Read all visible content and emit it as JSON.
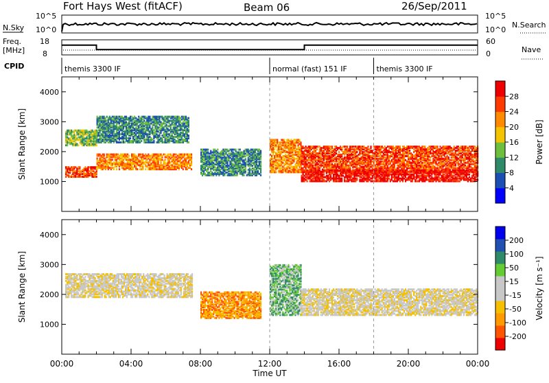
{
  "header": {
    "station": "Fort Hays West (fitACF)",
    "beam": "Beam 06",
    "date": "26/Sep/2011"
  },
  "top_panels": {
    "nsky_label": "N.Sky",
    "nsearch_label": "N.Search",
    "noise_ticks": [
      "10^5",
      "10^0"
    ],
    "freq_label": "Freq.",
    "freq_unit": "[MHz]",
    "freq_ticks": [
      "18",
      "8"
    ],
    "nave_label": "Nave",
    "nave_ticks": [
      "60",
      "0"
    ],
    "cpid_label": "CPID",
    "cpid_segments": [
      {
        "label": "themis 3300 IF",
        "start_hour": 0
      },
      {
        "label": "normal (fast) 151 IF",
        "start_hour": 12
      },
      {
        "label": "themis 3300 IF",
        "start_hour": 18
      }
    ],
    "freq_series": {
      "x": [
        0,
        2,
        2,
        14,
        14,
        24
      ],
      "y": [
        14.5,
        14.5,
        11.5,
        11.5,
        14.5,
        14.5
      ]
    }
  },
  "chart_data": [
    {
      "type": "heatmap",
      "name": "power",
      "ylabel": "Slant Range [km]",
      "xlim": [
        0,
        24
      ],
      "ylim": [
        0,
        4500
      ],
      "yticks": [
        "1000",
        "2000",
        "3000",
        "4000"
      ],
      "colorbar_label": "Power [dB]",
      "colorbar_ticks": [
        "28",
        "24",
        "20",
        "16",
        "12",
        "8",
        "4"
      ],
      "colorbar_colors": [
        "#0000ff",
        "#1c4fb4",
        "#2f8a6a",
        "#6fbf3f",
        "#f5c400",
        "#ff8a00",
        "#ff3a00",
        "#ee0000"
      ],
      "bands": [
        {
          "x": [
            0.2,
            2.0
          ],
          "y": [
            1150,
            1500
          ],
          "level": 6
        },
        {
          "x": [
            2.0,
            7.5
          ],
          "y": [
            1400,
            1900
          ],
          "level": 5
        },
        {
          "x": [
            0.2,
            2.0
          ],
          "y": [
            2200,
            2700
          ],
          "level": 3
        },
        {
          "x": [
            2.0,
            7.3
          ],
          "y": [
            2300,
            3200
          ],
          "level": 2
        },
        {
          "x": [
            8.0,
            11.5
          ],
          "y": [
            1200,
            2100
          ],
          "level": 2
        },
        {
          "x": [
            12.0,
            13.8
          ],
          "y": [
            1300,
            2400
          ],
          "level": 5
        },
        {
          "x": [
            13.8,
            24.0
          ],
          "y": [
            1300,
            2200
          ],
          "level": 6
        },
        {
          "x": [
            13.8,
            24.0
          ],
          "y": [
            1000,
            1400
          ],
          "level": 7
        }
      ]
    },
    {
      "type": "heatmap",
      "name": "velocity",
      "ylabel": "Slant Range [km]",
      "xlabel": "Time UT",
      "xlim": [
        0,
        24
      ],
      "ylim": [
        0,
        4500
      ],
      "yticks": [
        "1000",
        "2000",
        "3000",
        "4000"
      ],
      "xticks": [
        "00:00",
        "04:00",
        "08:00",
        "12:00",
        "16:00",
        "20:00",
        "00:00"
      ],
      "colorbar_label": "Velocity [m s⁻¹]",
      "colorbar_ticks": [
        "200",
        "100",
        "50",
        "15",
        "-15",
        "-50",
        "-100",
        "-200"
      ],
      "colorbar_colors": [
        "#ee0000",
        "#ff5500",
        "#ff9a00",
        "#f5c000",
        "#c8c8c8",
        "#c8c8c8",
        "#66cc33",
        "#2f8a6a",
        "#2050b0",
        "#0000ee"
      ],
      "bands": [
        {
          "x": [
            0.2,
            7.5
          ],
          "y": [
            1900,
            2700
          ],
          "level": 4
        },
        {
          "x": [
            8.0,
            11.5
          ],
          "y": [
            1200,
            2100
          ],
          "level": 2
        },
        {
          "x": [
            12.0,
            13.8
          ],
          "y": [
            1300,
            3000
          ],
          "level": 6
        },
        {
          "x": [
            13.8,
            24.0
          ],
          "y": [
            1300,
            2200
          ],
          "level": 4
        }
      ]
    }
  ]
}
